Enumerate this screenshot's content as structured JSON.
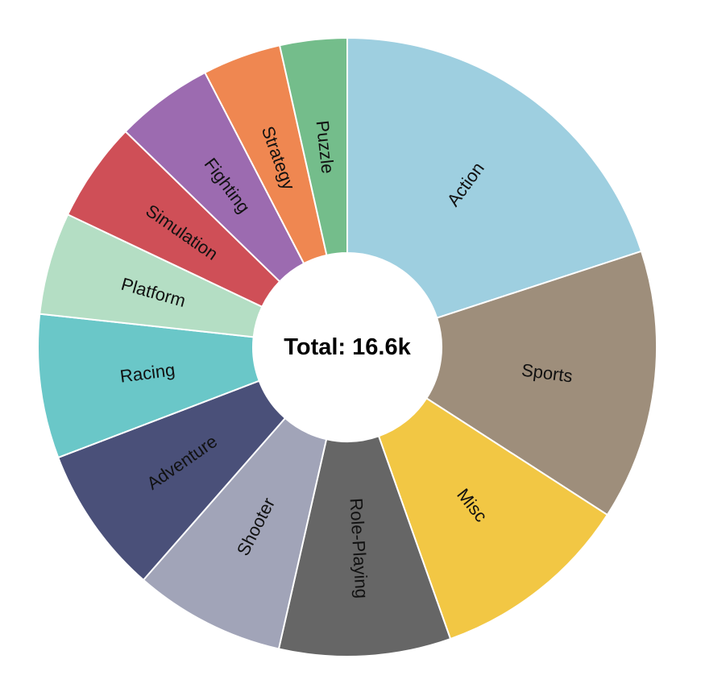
{
  "chart_data": {
    "type": "pie",
    "variant": "donut",
    "title": "",
    "center_label": "Total: 16.6k",
    "total": 16600,
    "slices": [
      {
        "label": "Action",
        "value": 3316,
        "color": "#9ecfe0"
      },
      {
        "label": "Sports",
        "value": 2346,
        "color": "#9e8e7b"
      },
      {
        "label": "Misc",
        "value": 1739,
        "color": "#f2c744"
      },
      {
        "label": "Role-Playing",
        "value": 1488,
        "color": "#666666"
      },
      {
        "label": "Shooter",
        "value": 1310,
        "color": "#a1a4b8"
      },
      {
        "label": "Adventure",
        "value": 1286,
        "color": "#4a5079"
      },
      {
        "label": "Racing",
        "value": 1249,
        "color": "#6ac7c8"
      },
      {
        "label": "Platform",
        "value": 886,
        "color": "#b4dec4"
      },
      {
        "label": "Simulation",
        "value": 867,
        "color": "#cf4f57"
      },
      {
        "label": "Fighting",
        "value": 848,
        "color": "#9c6bb0"
      },
      {
        "label": "Strategy",
        "value": 681,
        "color": "#ef8751"
      },
      {
        "label": "Puzzle",
        "value": 582,
        "color": "#74bd8b"
      }
    ]
  }
}
